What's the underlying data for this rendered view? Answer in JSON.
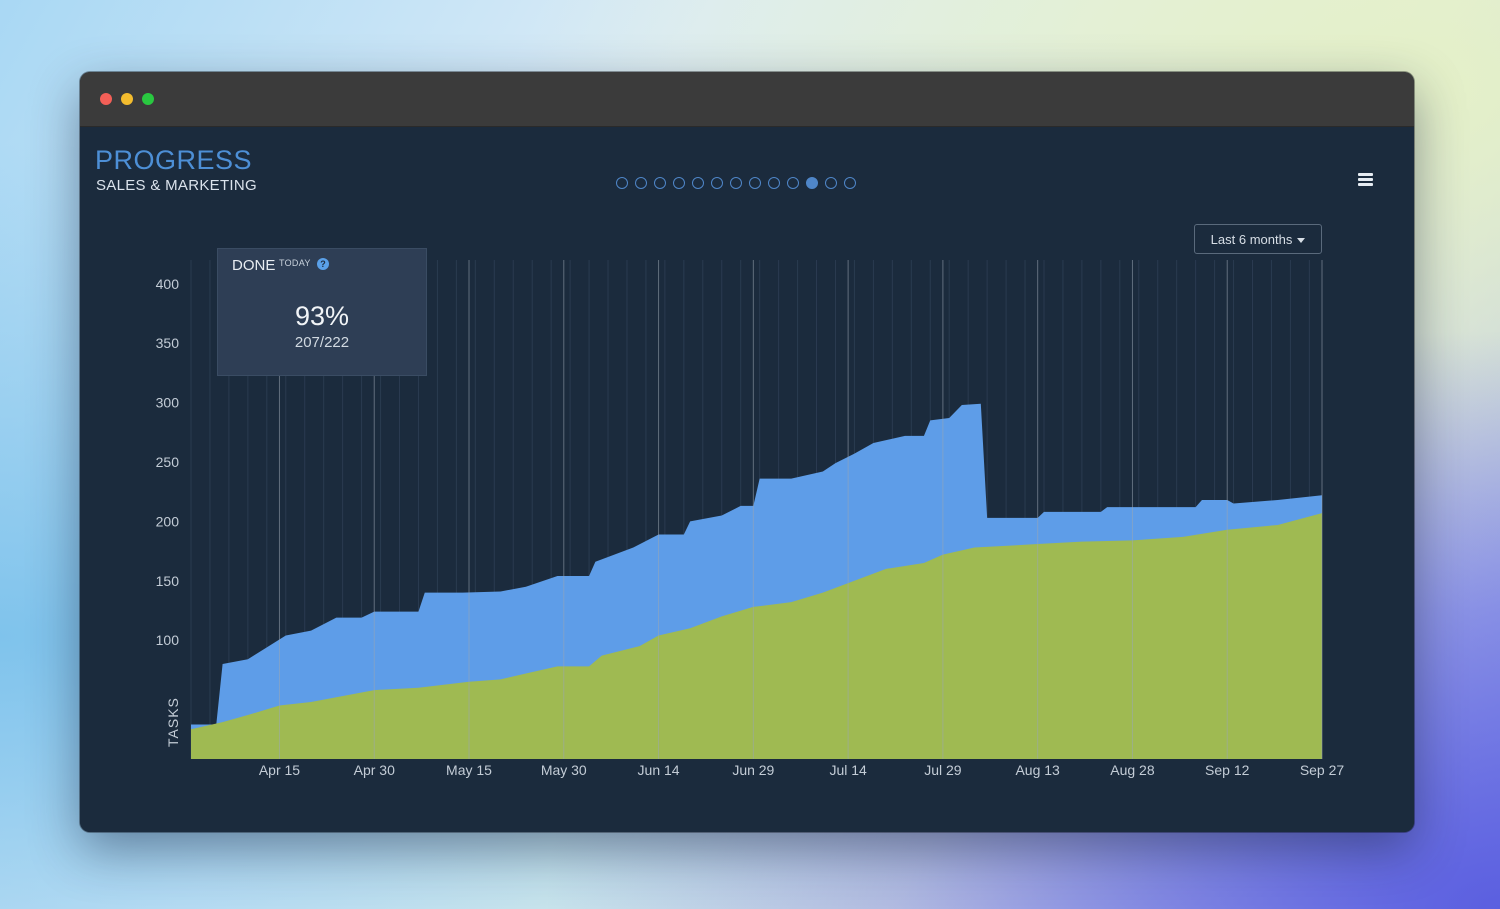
{
  "window": {
    "traffic_lights": [
      "close",
      "minimize",
      "zoom"
    ]
  },
  "header": {
    "title": "PROGRESS",
    "subtitle": "SALES & MARKETING",
    "pager": {
      "count": 13,
      "active_index": 10
    },
    "menu_icon": "hamburger-icon"
  },
  "range_select": {
    "label": "Last 6 months"
  },
  "done_widget": {
    "label": "DONE",
    "sublabel": "TODAY",
    "help_icon": "question-icon",
    "percent": "93%",
    "ratio": "207/222"
  },
  "colors": {
    "total": "#5e9de8",
    "done": "#9fba52",
    "background": "#1b2b3d",
    "accent": "#4d8fd6"
  },
  "chart_data": {
    "type": "area",
    "ylabel": "TASKS",
    "yticks": [
      100,
      150,
      200,
      250,
      300,
      350,
      400
    ],
    "ylim": [
      0,
      420
    ],
    "xticks": [
      "Apr 15",
      "Apr 30",
      "May 15",
      "May 30",
      "Jun 14",
      "Jun 29",
      "Jul 14",
      "Jul 29",
      "Aug 13",
      "Aug 28",
      "Sep 12",
      "Sep 27"
    ],
    "x_start": "Apr 1",
    "x_end": "Sep 27",
    "series": [
      {
        "name": "total",
        "points": [
          [
            "Apr 1",
            29
          ],
          [
            "Apr 5",
            29
          ],
          [
            "Apr 6",
            80
          ],
          [
            "Apr 10",
            84
          ],
          [
            "Apr 13",
            94
          ],
          [
            "Apr 16",
            104
          ],
          [
            "Apr 20",
            108
          ],
          [
            "Apr 24",
            119
          ],
          [
            "Apr 28",
            119
          ],
          [
            "Apr 30",
            124
          ],
          [
            "May 7",
            124
          ],
          [
            "May 8",
            140
          ],
          [
            "May 14",
            140
          ],
          [
            "May 20",
            141
          ],
          [
            "May 24",
            145
          ],
          [
            "May 29",
            154
          ],
          [
            "Jun 3",
            154
          ],
          [
            "Jun 4",
            166
          ],
          [
            "Jun 10",
            178
          ],
          [
            "Jun 14",
            189
          ],
          [
            "Jun 18",
            189
          ],
          [
            "Jun 19",
            200
          ],
          [
            "Jun 24",
            205
          ],
          [
            "Jun 27",
            213
          ],
          [
            "Jun 29",
            213
          ],
          [
            "Jun 30",
            236
          ],
          [
            "Jul 5",
            236
          ],
          [
            "Jul 10",
            242
          ],
          [
            "Jul 12",
            249
          ],
          [
            "Jul 15",
            257
          ],
          [
            "Jul 18",
            266
          ],
          [
            "Jul 23",
            272
          ],
          [
            "Jul 26",
            272
          ],
          [
            "Jul 27",
            285
          ],
          [
            "Jul 30",
            287
          ],
          [
            "Aug 1",
            298
          ],
          [
            "Aug 4",
            299
          ],
          [
            "Aug 5",
            203
          ],
          [
            "Aug 13",
            203
          ],
          [
            "Aug 14",
            208
          ],
          [
            "Aug 23",
            208
          ],
          [
            "Aug 24",
            212
          ],
          [
            "Sep 7",
            212
          ],
          [
            "Sep 8",
            218
          ],
          [
            "Sep 12",
            218
          ],
          [
            "Sep 13",
            215
          ],
          [
            "Sep 20",
            218
          ],
          [
            "Sep 27",
            222
          ]
        ]
      },
      {
        "name": "done",
        "points": [
          [
            "Apr 1",
            25
          ],
          [
            "Apr 6",
            31
          ],
          [
            "Apr 10",
            37
          ],
          [
            "Apr 15",
            45
          ],
          [
            "Apr 20",
            48
          ],
          [
            "Apr 24",
            52
          ],
          [
            "Apr 30",
            58
          ],
          [
            "May 7",
            60
          ],
          [
            "May 15",
            65
          ],
          [
            "May 20",
            67
          ],
          [
            "May 24",
            72
          ],
          [
            "May 29",
            78
          ],
          [
            "Jun 3",
            78
          ],
          [
            "Jun 5",
            87
          ],
          [
            "Jun 11",
            95
          ],
          [
            "Jun 14",
            104
          ],
          [
            "Jun 19",
            110
          ],
          [
            "Jun 24",
            120
          ],
          [
            "Jun 29",
            128
          ],
          [
            "Jul 5",
            132
          ],
          [
            "Jul 10",
            140
          ],
          [
            "Jul 15",
            150
          ],
          [
            "Jul 20",
            160
          ],
          [
            "Jul 26",
            165
          ],
          [
            "Jul 29",
            172
          ],
          [
            "Aug 3",
            178
          ],
          [
            "Aug 10",
            180
          ],
          [
            "Aug 13",
            181
          ],
          [
            "Aug 20",
            183
          ],
          [
            "Aug 28",
            184
          ],
          [
            "Sep 5",
            187
          ],
          [
            "Sep 12",
            193
          ],
          [
            "Sep 20",
            197
          ],
          [
            "Sep 27",
            207
          ]
        ]
      }
    ]
  }
}
